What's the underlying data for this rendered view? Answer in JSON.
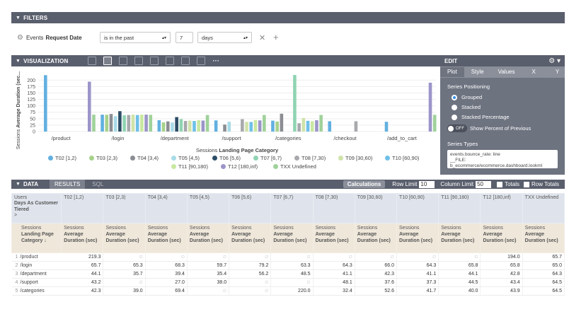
{
  "filters": {
    "header": "FILTERS",
    "field_view": "Events",
    "field_name": "Request Date",
    "operator": "is in the past",
    "value": "7",
    "unit": "days",
    "remove_glyph": "✕",
    "add_glyph": "+"
  },
  "visualization": {
    "header": "VISUALIZATION",
    "more_glyph": "···",
    "edit": {
      "title": "EDIT",
      "tabs": [
        "Plot",
        "Style",
        "Values",
        "X",
        "Y"
      ],
      "series_positioning_label": "Series Positioning",
      "options": [
        "Grouped",
        "Stacked",
        "Stacked Percentage"
      ],
      "selected_option": "Grouped",
      "toggle_state": "OFF",
      "toggle_label": "Show Percent of Previous",
      "series_types_label": "Series Types",
      "series_types_text": "events.bounce_rate: line\n__FILE:\nb_ecommerce/ecommerce.dashboard.lookml"
    }
  },
  "chart_data": {
    "type": "bar",
    "xlabel_view": "Sessions",
    "xlabel_field": "Landing Page Category",
    "ylabel_view": "Sessions",
    "ylabel_field": "Average Duration (sec...",
    "yticks": [
      "200",
      "175",
      "150",
      "125",
      "100",
      "75",
      "50",
      "25",
      "0"
    ],
    "ylim": [
      0,
      220
    ],
    "categories": [
      "/product",
      "/login",
      "/department",
      "/support",
      "/categories",
      "/checkout",
      "/add_to_cart"
    ],
    "series": [
      {
        "name": "T02 [1,2)",
        "color": "#62b0e0",
        "values": [
          219.3,
          65.7,
          44.1,
          43.2,
          42.3,
          40.0,
          38.0
        ]
      },
      {
        "name": "T03 [2,3)",
        "color": "#a6d18a",
        "values": [
          null,
          65.3,
          35.7,
          null,
          39.0,
          null,
          null
        ]
      },
      {
        "name": "T04 [3,4)",
        "color": "#8a8d93",
        "values": [
          null,
          68.3,
          39.4,
          27.0,
          69.4,
          null,
          null
        ]
      },
      {
        "name": "T05 [4,5)",
        "color": "#a8dbe8",
        "values": [
          null,
          59.7,
          35.4,
          38.0,
          null,
          null,
          null
        ]
      },
      {
        "name": "T06 [5,6)",
        "color": "#2d4d66",
        "values": [
          null,
          79.2,
          56.2,
          null,
          null,
          null,
          null
        ]
      },
      {
        "name": "T07 [6,7)",
        "color": "#8fd4b2",
        "values": [
          null,
          63.3,
          48.5,
          null,
          220.0,
          null,
          null
        ]
      },
      {
        "name": "T08 [7,30)",
        "color": "#a7a9ad",
        "values": [
          null,
          64.3,
          41.1,
          48.1,
          32.4,
          40.0,
          null
        ]
      },
      {
        "name": "T09 [30,60)",
        "color": "#cfe3a8",
        "values": [
          null,
          66.0,
          42.3,
          37.6,
          52.6,
          null,
          null
        ]
      },
      {
        "name": "T10 [60,90)",
        "color": "#6fc0e8",
        "values": [
          null,
          64.3,
          41.1,
          37.3,
          41.7,
          null,
          null
        ]
      },
      {
        "name": "T11 [90,180)",
        "color": "#c9e8a0",
        "values": [
          null,
          65.8,
          44.1,
          44.5,
          40.0,
          null,
          null
        ]
      },
      {
        "name": "T12 [180,inf)",
        "color": "#9b95c9",
        "values": [
          194.0,
          65.8,
          42.8,
          43.4,
          43.9,
          null,
          190.0
        ]
      },
      {
        "name": "TXX Undefined",
        "color": "#9fd29a",
        "values": [
          65.7,
          65.0,
          64.3,
          64.5,
          64.5,
          null,
          65.0
        ]
      }
    ]
  },
  "data_section": {
    "header": "DATA",
    "tabs": [
      "RESULTS",
      "SQL"
    ],
    "active_tab": "RESULTS",
    "calculations_label": "Calculations",
    "row_limit_label": "Row Limit",
    "row_limit_value": "10",
    "column_limit_label": "Column Limit",
    "column_limit_value": "50",
    "totals_label": "Totals",
    "row_totals_label": "Row Totals"
  },
  "table": {
    "pivot_header": {
      "line1": "Users",
      "line2": "Days As Customer Tiered",
      "chevron": ">"
    },
    "pivot_columns": [
      "T02 [1,2)",
      "T03 [2,3)",
      "T04 [3,4)",
      "T05 [4,5)",
      "T06 [5,6)",
      "T07 [6,7)",
      "T08 [7,30)",
      "T09 [30,60)",
      "T10 [60,90)",
      "T11 [90,180)",
      "T12 [180,inf)",
      "TXX Undefined"
    ],
    "dimension_header": {
      "line1": "Sessions",
      "line2": "Landing Page Category",
      "line3": "↓"
    },
    "measure_header": {
      "view": "Sessions",
      "field": "Average Duration (sec)"
    },
    "empty_mark": "∅",
    "rows": [
      {
        "idx": "1",
        "dim": "/product",
        "cells": [
          "219.3",
          "",
          "",
          "",
          "",
          "",
          "",
          "",
          "",
          "",
          "194.0",
          "65.7"
        ]
      },
      {
        "idx": "2",
        "dim": "/login",
        "cells": [
          "65.7",
          "65.3",
          "68.3",
          "59.7",
          "79.2",
          "63.3",
          "64.3",
          "66.0",
          "64.3",
          "65.8",
          "65.8",
          "65.0"
        ]
      },
      {
        "idx": "3",
        "dim": "/department",
        "cells": [
          "44.1",
          "35.7",
          "39.4",
          "35.4",
          "56.2",
          "48.5",
          "41.1",
          "42.3",
          "41.1",
          "44.1",
          "42.8",
          "64.3"
        ]
      },
      {
        "idx": "4",
        "dim": "/support",
        "cells": [
          "43.2",
          "",
          "27.0",
          "38.0",
          "",
          "",
          "48.1",
          "37.6",
          "37.3",
          "44.5",
          "43.4",
          "64.5"
        ]
      },
      {
        "idx": "5",
        "dim": "/categories",
        "cells": [
          "42.3",
          "39.0",
          "69.4",
          "",
          "",
          "220.0",
          "32.4",
          "52.6",
          "41.7",
          "40.0",
          "43.9",
          "64.5"
        ]
      }
    ]
  }
}
